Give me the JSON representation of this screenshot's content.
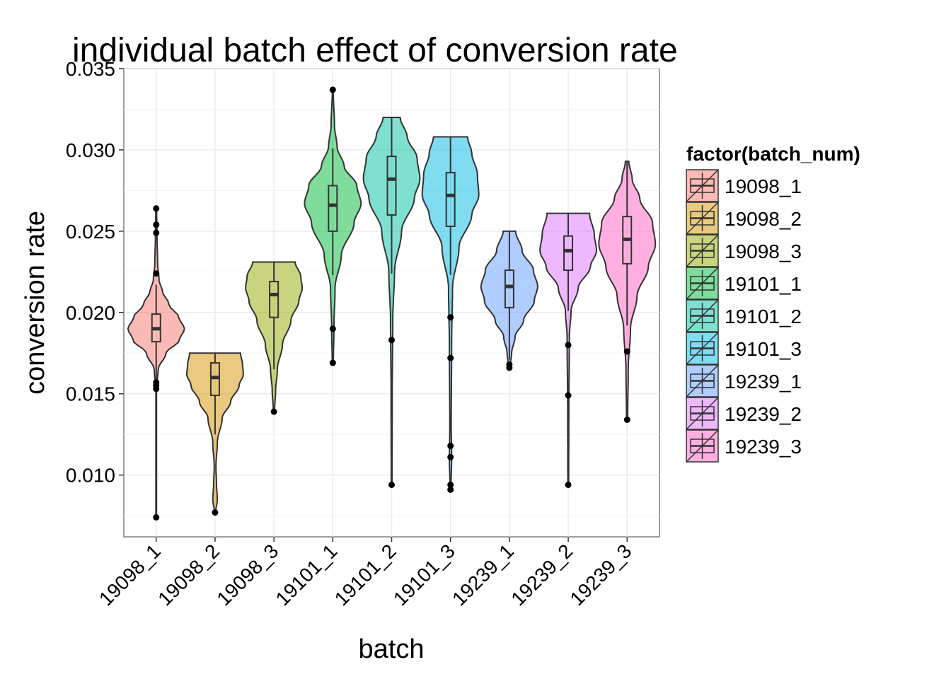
{
  "chart_data": {
    "type": "violin",
    "title": "individual batch effect of conversion rate",
    "xlabel": "batch",
    "ylabel": "conversion rate",
    "ylim": [
      0.0062,
      0.035
    ],
    "yticks": [
      "0.010",
      "0.015",
      "0.020",
      "0.025",
      "0.030",
      "0.035"
    ],
    "grid": true,
    "legend": {
      "title": "factor(batch_num)",
      "position": "right"
    },
    "categories": [
      "19098_1",
      "19098_2",
      "19098_3",
      "19101_1",
      "19101_2",
      "19101_3",
      "19239_1",
      "19239_2",
      "19239_3"
    ],
    "series": [
      {
        "name": "19098_1",
        "color": "#F8766D",
        "box": {
          "lower_whisker": 0.0155,
          "q1": 0.0182,
          "median": 0.019,
          "q3": 0.0199,
          "upper_whisker": 0.0217
        },
        "outliers": [
          0.0074,
          0.0153,
          0.0155,
          0.0157,
          0.0224,
          0.0249,
          0.0254,
          0.0264
        ],
        "range": [
          0.0074,
          0.0264
        ],
        "density": [
          [
            0.0074,
            0.002
          ],
          [
            0.012,
            0.003
          ],
          [
            0.0153,
            0.008
          ],
          [
            0.0165,
            0.07
          ],
          [
            0.0175,
            0.35
          ],
          [
            0.0183,
            0.82
          ],
          [
            0.019,
            1.0
          ],
          [
            0.0197,
            0.8
          ],
          [
            0.0205,
            0.45
          ],
          [
            0.0213,
            0.22
          ],
          [
            0.022,
            0.1
          ],
          [
            0.023,
            0.05
          ],
          [
            0.0245,
            0.03
          ],
          [
            0.0264,
            0.015
          ]
        ]
      },
      {
        "name": "19098_2",
        "color": "#D39200",
        "box": {
          "lower_whisker": 0.0125,
          "q1": 0.0149,
          "median": 0.016,
          "q3": 0.0169,
          "upper_whisker": 0.0175
        },
        "outliers": [
          0.0077
        ],
        "range": [
          0.0077,
          0.0175
        ],
        "density": [
          [
            0.0077,
            0.02
          ],
          [
            0.0085,
            0.08
          ],
          [
            0.0095,
            0.05
          ],
          [
            0.0105,
            0.03
          ],
          [
            0.012,
            0.08
          ],
          [
            0.0135,
            0.25
          ],
          [
            0.0145,
            0.55
          ],
          [
            0.0155,
            0.85
          ],
          [
            0.0162,
            1.0
          ],
          [
            0.0168,
            0.97
          ],
          [
            0.0175,
            0.9
          ]
        ]
      },
      {
        "name": "19098_3",
        "color": "#93AA00",
        "box": {
          "lower_whisker": 0.0165,
          "q1": 0.0197,
          "median": 0.0211,
          "q3": 0.0219,
          "upper_whisker": 0.0231
        },
        "outliers": [
          0.0139
        ],
        "range": [
          0.0139,
          0.0231
        ],
        "density": [
          [
            0.0139,
            0.02
          ],
          [
            0.0152,
            0.06
          ],
          [
            0.0165,
            0.12
          ],
          [
            0.018,
            0.3
          ],
          [
            0.0195,
            0.6
          ],
          [
            0.0207,
            0.88
          ],
          [
            0.0215,
            1.0
          ],
          [
            0.0222,
            0.95
          ],
          [
            0.0231,
            0.75
          ]
        ]
      },
      {
        "name": "19101_1",
        "color": "#00BA38",
        "box": {
          "lower_whisker": 0.0223,
          "q1": 0.025,
          "median": 0.0266,
          "q3": 0.0278,
          "upper_whisker": 0.0301
        },
        "outliers": [
          0.0169,
          0.019,
          0.0337
        ],
        "range": [
          0.0169,
          0.0337
        ],
        "density": [
          [
            0.0169,
            0.02
          ],
          [
            0.019,
            0.04
          ],
          [
            0.0215,
            0.08
          ],
          [
            0.0235,
            0.3
          ],
          [
            0.0255,
            0.75
          ],
          [
            0.0267,
            1.0
          ],
          [
            0.0278,
            0.85
          ],
          [
            0.029,
            0.4
          ],
          [
            0.0302,
            0.15
          ],
          [
            0.0315,
            0.06
          ],
          [
            0.0337,
            0.015
          ]
        ]
      },
      {
        "name": "19101_2",
        "color": "#00C19F",
        "box": {
          "lower_whisker": 0.0224,
          "q1": 0.026,
          "median": 0.0282,
          "q3": 0.0296,
          "upper_whisker": 0.032
        },
        "outliers": [
          0.0094,
          0.0183
        ],
        "range": [
          0.0094,
          0.032
        ],
        "density": [
          [
            0.0094,
            0.015
          ],
          [
            0.015,
            0.02
          ],
          [
            0.0195,
            0.04
          ],
          [
            0.0225,
            0.1
          ],
          [
            0.025,
            0.35
          ],
          [
            0.027,
            0.8
          ],
          [
            0.0282,
            1.0
          ],
          [
            0.0295,
            0.9
          ],
          [
            0.0308,
            0.55
          ],
          [
            0.032,
            0.3
          ]
        ]
      },
      {
        "name": "19101_3",
        "color": "#00B9E3",
        "box": {
          "lower_whisker": 0.0223,
          "q1": 0.0253,
          "median": 0.0272,
          "q3": 0.0286,
          "upper_whisker": 0.0308
        },
        "outliers": [
          0.0091,
          0.0094,
          0.0111,
          0.0118,
          0.0172,
          0.0197
        ],
        "range": [
          0.0091,
          0.0308
        ],
        "density": [
          [
            0.0091,
            0.015
          ],
          [
            0.011,
            0.04
          ],
          [
            0.013,
            0.025
          ],
          [
            0.018,
            0.04
          ],
          [
            0.0215,
            0.07
          ],
          [
            0.024,
            0.3
          ],
          [
            0.026,
            0.75
          ],
          [
            0.0272,
            1.0
          ],
          [
            0.0285,
            0.95
          ],
          [
            0.0298,
            0.75
          ],
          [
            0.0308,
            0.6
          ]
        ]
      },
      {
        "name": "19239_1",
        "color": "#619CFF",
        "box": {
          "lower_whisker": 0.0171,
          "q1": 0.0203,
          "median": 0.0216,
          "q3": 0.0226,
          "upper_whisker": 0.025
        },
        "outliers": [
          0.0166,
          0.0168
        ],
        "range": [
          0.0166,
          0.025
        ],
        "density": [
          [
            0.0166,
            0.02
          ],
          [
            0.0175,
            0.08
          ],
          [
            0.0185,
            0.2
          ],
          [
            0.0195,
            0.5
          ],
          [
            0.0207,
            0.88
          ],
          [
            0.0216,
            1.0
          ],
          [
            0.0226,
            0.85
          ],
          [
            0.0238,
            0.45
          ],
          [
            0.025,
            0.22
          ]
        ]
      },
      {
        "name": "19239_2",
        "color": "#DB72FB",
        "box": {
          "lower_whisker": 0.0201,
          "q1": 0.0226,
          "median": 0.0238,
          "q3": 0.0247,
          "upper_whisker": 0.0261
        },
        "outliers": [
          0.0094,
          0.0149,
          0.018
        ],
        "range": [
          0.0094,
          0.0261
        ],
        "density": [
          [
            0.0094,
            0.015
          ],
          [
            0.014,
            0.02
          ],
          [
            0.0185,
            0.04
          ],
          [
            0.0201,
            0.1
          ],
          [
            0.0215,
            0.35
          ],
          [
            0.0228,
            0.78
          ],
          [
            0.0238,
            1.0
          ],
          [
            0.0248,
            0.92
          ],
          [
            0.0261,
            0.75
          ]
        ]
      },
      {
        "name": "19239_3",
        "color": "#FF61C3",
        "box": {
          "lower_whisker": 0.0192,
          "q1": 0.023,
          "median": 0.0245,
          "q3": 0.0259,
          "upper_whisker": 0.0293
        },
        "outliers": [
          0.0134,
          0.0176
        ],
        "range": [
          0.0134,
          0.0293
        ],
        "density": [
          [
            0.0134,
            0.02
          ],
          [
            0.0165,
            0.04
          ],
          [
            0.019,
            0.12
          ],
          [
            0.021,
            0.35
          ],
          [
            0.0228,
            0.75
          ],
          [
            0.0242,
            1.0
          ],
          [
            0.0255,
            0.9
          ],
          [
            0.027,
            0.45
          ],
          [
            0.0282,
            0.18
          ],
          [
            0.0293,
            0.06
          ]
        ]
      }
    ]
  }
}
